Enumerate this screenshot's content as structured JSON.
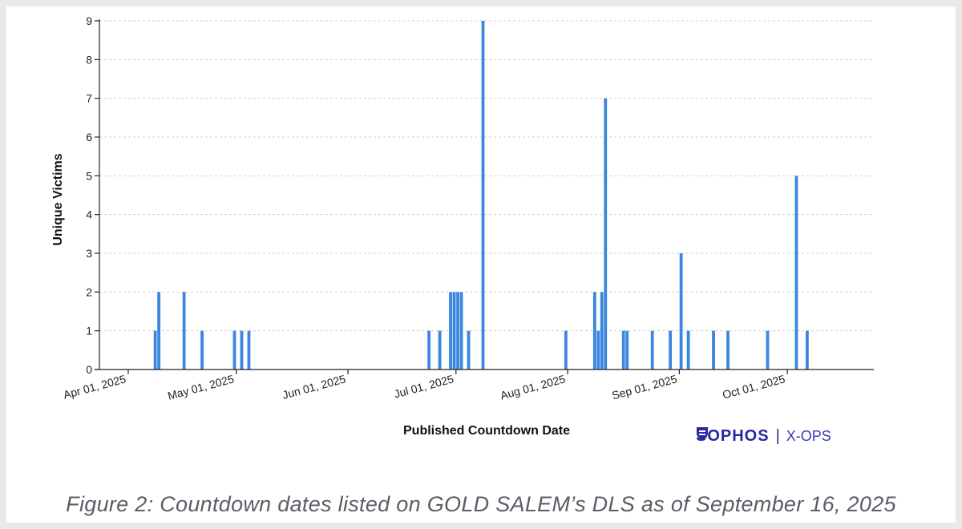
{
  "chart_data": {
    "type": "bar",
    "title": "",
    "xlabel": "Published Countdown Date",
    "ylabel": "Unique Victims",
    "ylim": [
      0,
      9
    ],
    "yticks": [
      0,
      1,
      2,
      3,
      4,
      5,
      6,
      7,
      8,
      9
    ],
    "xlim": [
      "2025-03-24",
      "2025-10-25"
    ],
    "xticks": [
      {
        "date": "2025-04-01",
        "label": "Apr 01, 2025"
      },
      {
        "date": "2025-05-01",
        "label": "May 01, 2025"
      },
      {
        "date": "2025-06-01",
        "label": "Jun 01, 2025"
      },
      {
        "date": "2025-07-01",
        "label": "Jul 01, 2025"
      },
      {
        "date": "2025-08-01",
        "label": "Aug 01, 2025"
      },
      {
        "date": "2025-09-01",
        "label": "Sep 01, 2025"
      },
      {
        "date": "2025-10-01",
        "label": "Oct 01, 2025"
      }
    ],
    "grid": true,
    "bar_color": "#3b86df",
    "bars": [
      {
        "date": "2025-04-08",
        "value": 1
      },
      {
        "date": "2025-04-09",
        "value": 2
      },
      {
        "date": "2025-04-16",
        "value": 2
      },
      {
        "date": "2025-04-21",
        "value": 1
      },
      {
        "date": "2025-04-30",
        "value": 1
      },
      {
        "date": "2025-05-02",
        "value": 1
      },
      {
        "date": "2025-05-04",
        "value": 1
      },
      {
        "date": "2025-06-23",
        "value": 1
      },
      {
        "date": "2025-06-26",
        "value": 1
      },
      {
        "date": "2025-06-29",
        "value": 2
      },
      {
        "date": "2025-06-30",
        "value": 2
      },
      {
        "date": "2025-07-01",
        "value": 2
      },
      {
        "date": "2025-07-02",
        "value": 2
      },
      {
        "date": "2025-07-04",
        "value": 1
      },
      {
        "date": "2025-07-08",
        "value": 9
      },
      {
        "date": "2025-07-31",
        "value": 1
      },
      {
        "date": "2025-08-08",
        "value": 2
      },
      {
        "date": "2025-08-09",
        "value": 1
      },
      {
        "date": "2025-08-10",
        "value": 2
      },
      {
        "date": "2025-08-11",
        "value": 7
      },
      {
        "date": "2025-08-16",
        "value": 1
      },
      {
        "date": "2025-08-17",
        "value": 1
      },
      {
        "date": "2025-08-24",
        "value": 1
      },
      {
        "date": "2025-08-29",
        "value": 1
      },
      {
        "date": "2025-09-01",
        "value": 3
      },
      {
        "date": "2025-09-03",
        "value": 1
      },
      {
        "date": "2025-09-10",
        "value": 1
      },
      {
        "date": "2025-09-14",
        "value": 1
      },
      {
        "date": "2025-09-25",
        "value": 1
      },
      {
        "date": "2025-10-03",
        "value": 5
      },
      {
        "date": "2025-10-06",
        "value": 1
      }
    ]
  },
  "branding": {
    "name": "SOPHOS",
    "separator": "|",
    "sub": "X-OPS",
    "color": "#2828a0"
  },
  "caption": "Figure 2: Countdown dates listed on GOLD SALEM’s DLS as of September 16, 2025"
}
